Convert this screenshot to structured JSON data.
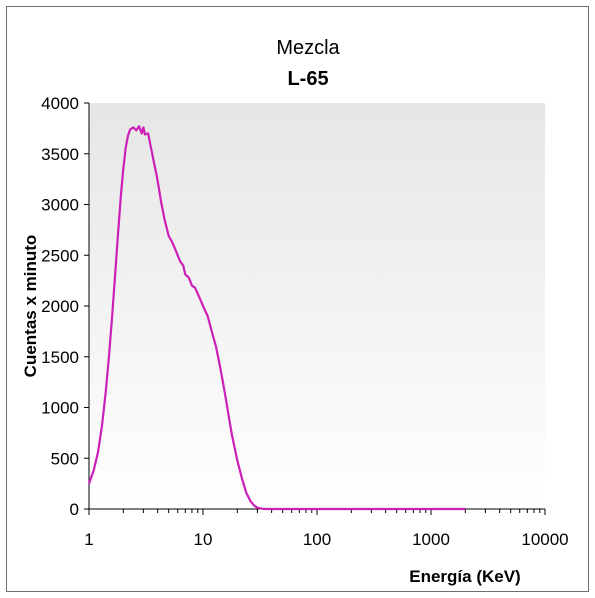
{
  "chart_data": {
    "type": "line",
    "title": "Mezcla",
    "subtitle": "L-65",
    "xlabel": "Energía (KeV)",
    "ylabel": "Cuentas x minuto",
    "x_scale": "log",
    "xlim": [
      1,
      10000
    ],
    "ylim": [
      0,
      4000
    ],
    "x_ticks": [
      "1",
      "10",
      "100",
      "1000",
      "10000"
    ],
    "y_ticks": [
      "0",
      "500",
      "1000",
      "1500",
      "2000",
      "2500",
      "3000",
      "3500",
      "4000"
    ],
    "grid": false,
    "legend": "none",
    "colors": {
      "series": "#cc1fb8",
      "background_top": "#e6e6e6",
      "background_bottom": "#ffffff"
    },
    "series": [
      {
        "x": [
          1.0,
          1.1,
          1.2,
          1.3,
          1.4,
          1.5,
          1.6,
          1.7,
          1.8,
          1.9,
          2.0,
          2.1,
          2.2,
          2.3,
          2.45,
          2.6,
          2.75,
          2.9,
          3.0,
          3.1,
          3.3,
          3.5,
          3.7,
          3.9,
          4.1,
          4.3,
          4.6,
          5.0,
          5.3,
          5.6,
          6.0,
          6.3,
          6.7,
          7.0,
          7.5,
          8.0,
          8.5,
          9.0,
          9.5,
          10.0,
          11.0,
          12.0,
          13.0,
          14.0,
          15.0,
          16.0,
          17.0,
          18.0,
          20.0,
          22.0,
          24.0,
          26.0,
          28.0,
          30.0,
          33.0,
          36.0,
          40.0,
          45.0,
          50.0,
          100.0,
          300.0,
          1000.0,
          2000.0
        ],
        "y": [
          250,
          380,
          560,
          820,
          1150,
          1520,
          1920,
          2330,
          2720,
          3080,
          3350,
          3560,
          3680,
          3740,
          3760,
          3730,
          3770,
          3700,
          3760,
          3690,
          3700,
          3560,
          3420,
          3300,
          3160,
          3020,
          2850,
          2690,
          2640,
          2580,
          2500,
          2440,
          2400,
          2310,
          2280,
          2200,
          2180,
          2120,
          2060,
          2000,
          1900,
          1740,
          1600,
          1420,
          1240,
          1060,
          880,
          720,
          480,
          300,
          160,
          80,
          35,
          12,
          3,
          0,
          0,
          0,
          0,
          0,
          0,
          0,
          0
        ]
      }
    ]
  }
}
